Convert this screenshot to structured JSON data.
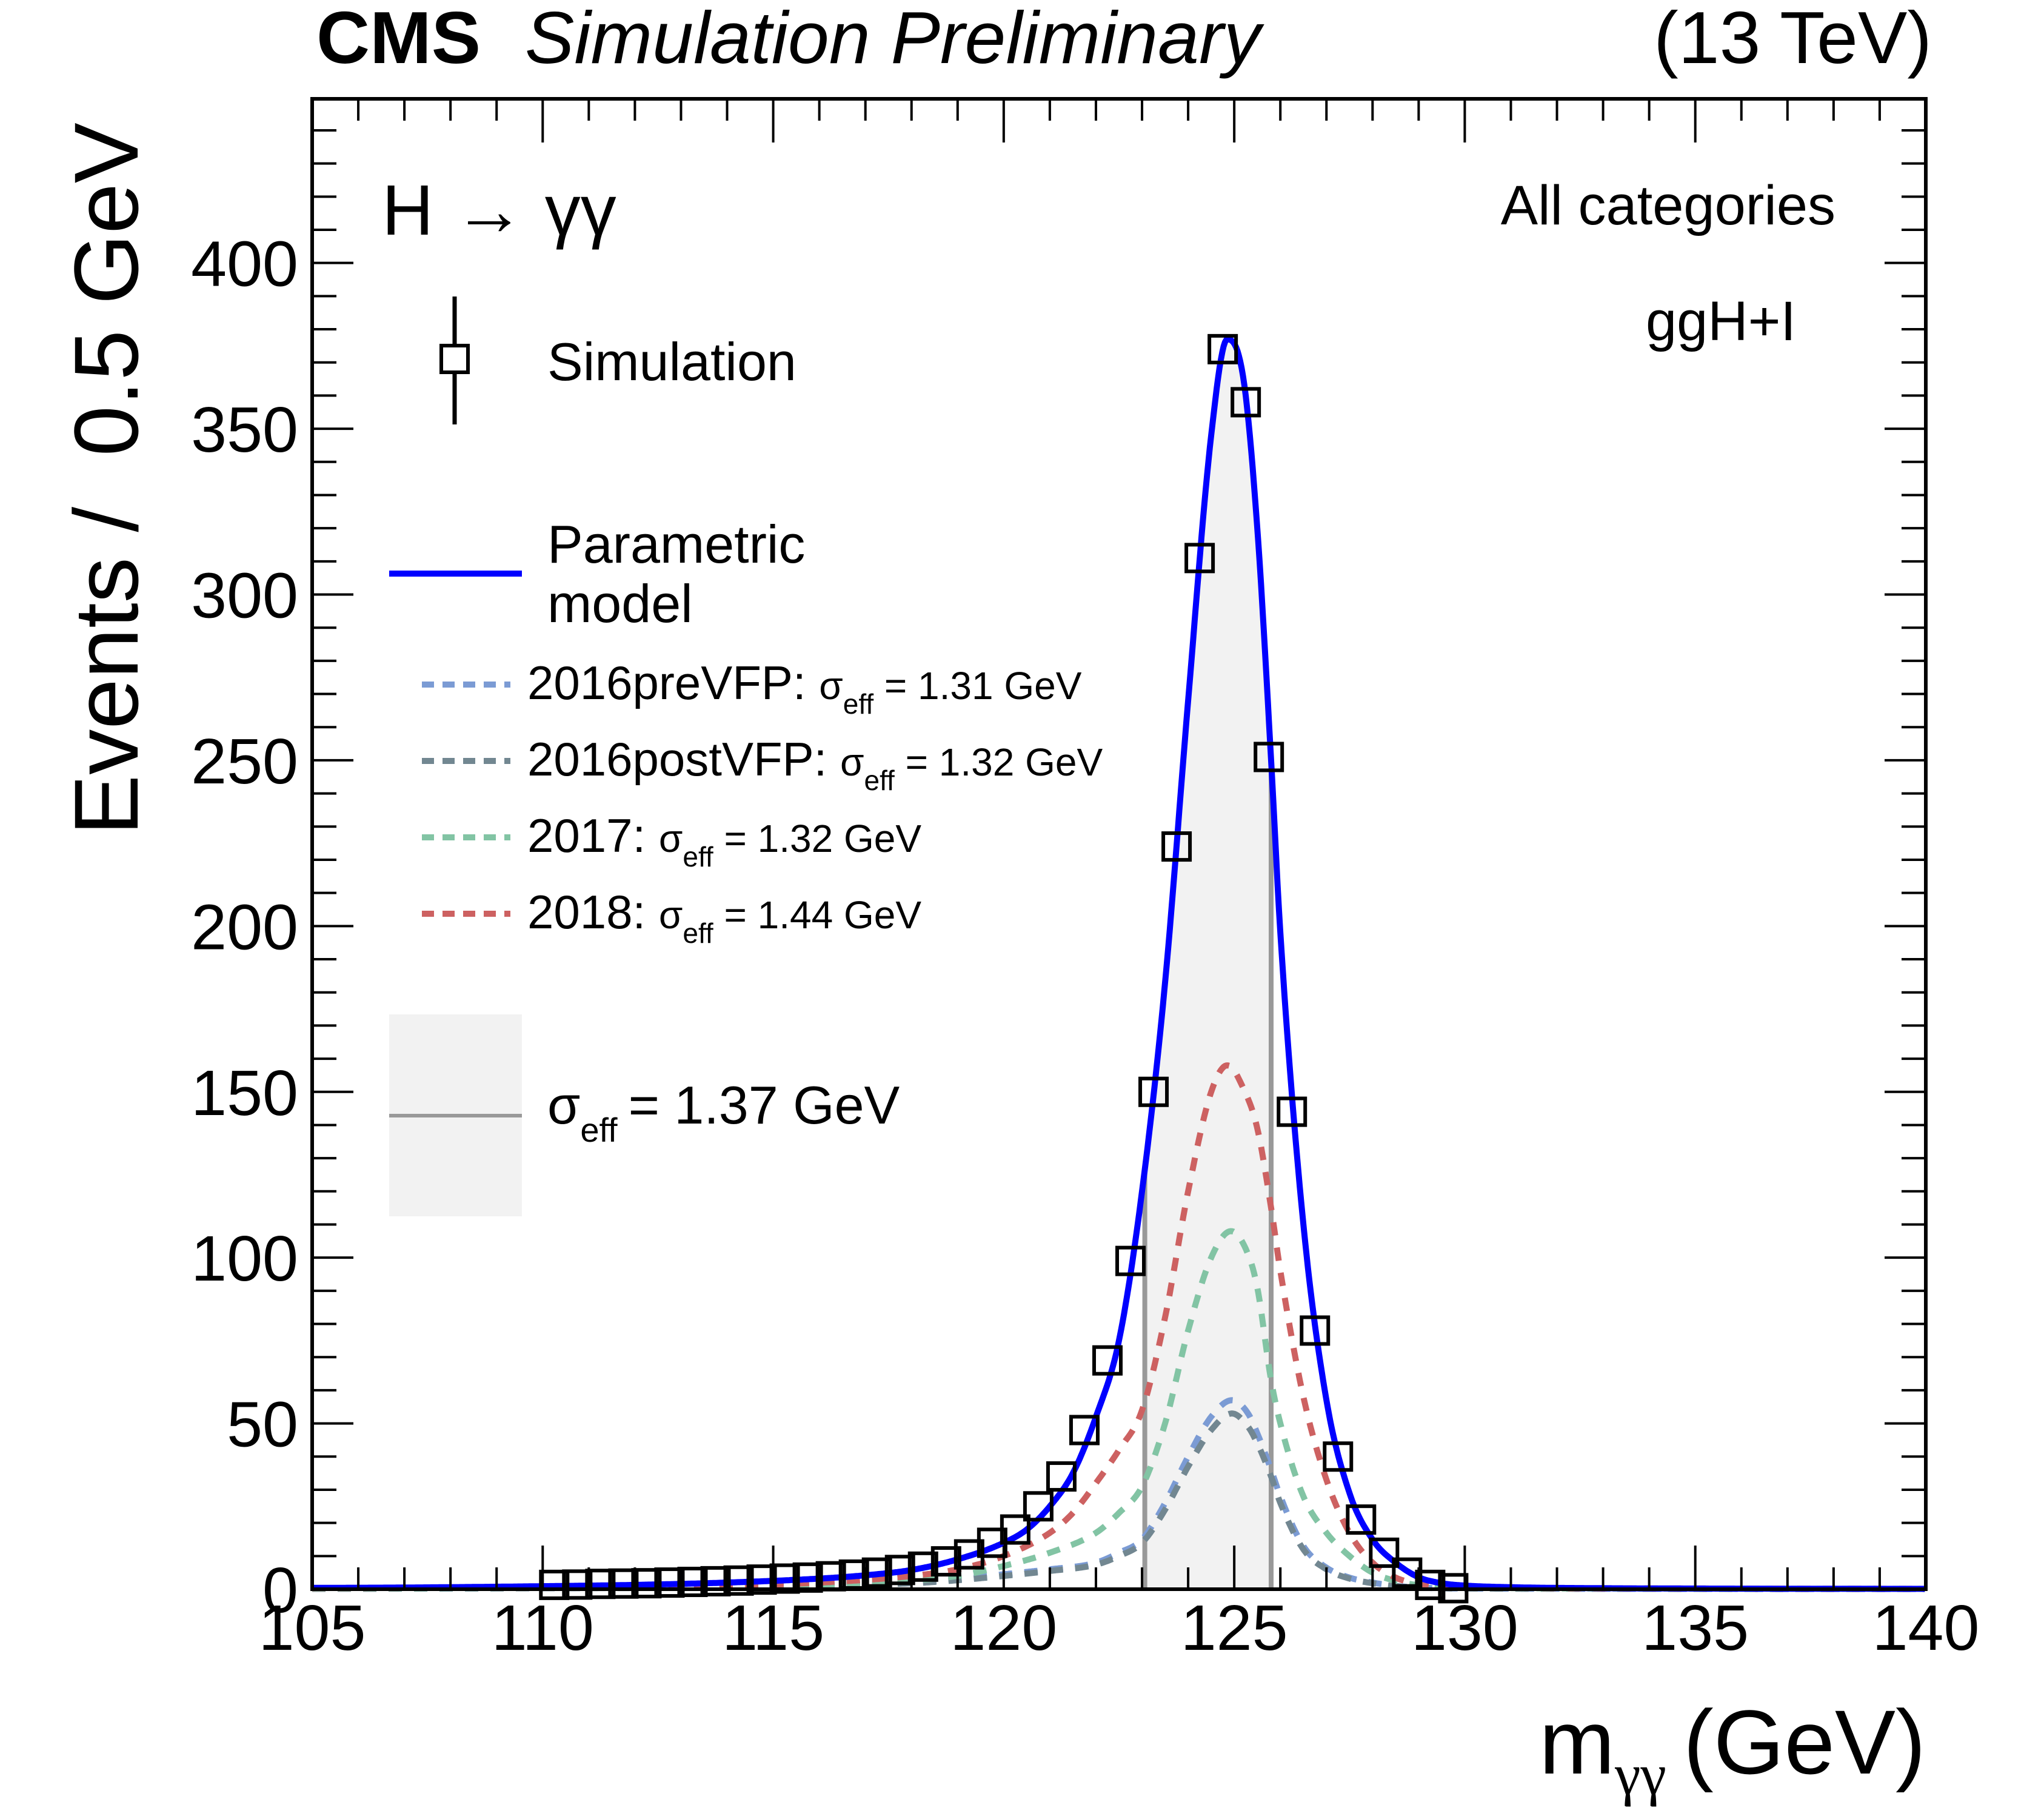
{
  "header": {
    "experiment": "CMS",
    "status": "Simulation Preliminary",
    "energy": "(13 TeV)"
  },
  "annotations": {
    "process": "H → γγ",
    "category": "All categories",
    "production": "ggH+I"
  },
  "legend": {
    "simulation": "Simulation",
    "model_line1": "Parametric",
    "model_line2": "model",
    "years": [
      {
        "name": "2016preVFP:",
        "sigma": "σ",
        "sub": "eff",
        "value": "= 1.31 GeV",
        "color": "#7b9bd4"
      },
      {
        "name": "2016postVFP:",
        "sigma": "σ",
        "sub": "eff",
        "value": "= 1.32 GeV",
        "color": "#728791"
      },
      {
        "name": "2017:",
        "sigma": "σ",
        "sub": "eff",
        "value": "= 1.32 GeV",
        "color": "#82c4a4"
      },
      {
        "name": "2018:",
        "sigma": "σ",
        "sub": "eff",
        "value": "= 1.44 GeV",
        "color": "#cd6161"
      }
    ],
    "sigma_eff": {
      "sigma": "σ",
      "sub": "eff",
      "value": "= 1.37 GeV"
    }
  },
  "chart_data": {
    "type": "line",
    "title": "CMS Simulation Preliminary (13 TeV)",
    "xlabel_main": "m",
    "xlabel_sub": "γγ",
    "xlabel_unit": "(GeV)",
    "ylabel": "Events /  0.5 GeV",
    "xlim": [
      105,
      140
    ],
    "ylim": [
      0,
      449.5
    ],
    "x_ticks": [
      105,
      110,
      115,
      120,
      125,
      130,
      135,
      140
    ],
    "y_ticks": [
      0,
      50,
      100,
      150,
      200,
      250,
      300,
      350,
      400
    ],
    "x_minor_step": 1,
    "y_minor_step": 10,
    "grid": false,
    "legend_position": "top-left",
    "colors": {
      "model": "#0000ff",
      "band_fill": "#f2f2f2",
      "band_edge": "#999999",
      "points": "#000000"
    },
    "sigma_eff_band": [
      123.06,
      125.8
    ],
    "simulation_points": {
      "name": "Simulation",
      "bin_width": 0.5,
      "x": [
        110.25,
        110.75,
        111.25,
        111.75,
        112.25,
        112.75,
        113.25,
        113.75,
        114.25,
        114.75,
        115.25,
        115.75,
        116.25,
        116.75,
        117.25,
        117.75,
        118.25,
        118.75,
        119.25,
        119.75,
        120.25,
        120.75,
        121.25,
        121.75,
        122.25,
        122.75,
        123.25,
        123.75,
        124.25,
        124.75,
        125.25,
        125.75,
        126.25,
        126.75,
        127.25,
        127.75,
        128.25,
        128.75,
        129.25,
        129.75
      ],
      "y": [
        1.3,
        1.4,
        1.6,
        1.7,
        1.8,
        2.0,
        2.2,
        2.4,
        2.6,
        2.9,
        3.2,
        3.5,
        3.9,
        4.4,
        5.0,
        5.8,
        6.8,
        8.4,
        10.5,
        14,
        18,
        25,
        34,
        48,
        69,
        99,
        150,
        224,
        311,
        374,
        358,
        251,
        144,
        78,
        40,
        21,
        11,
        5,
        1.3,
        0.3
      ]
    },
    "series": [
      {
        "name": "Parametric model",
        "style": "solid",
        "color": "#0000ff",
        "x": [
          105,
          107,
          110,
          112,
          114,
          116,
          117,
          118,
          119,
          120,
          120.5,
          121,
          121.5,
          122,
          122.5,
          123,
          123.5,
          124,
          124.5,
          124.85,
          125.2,
          125.5,
          125.8,
          126,
          126.5,
          127,
          127.5,
          128,
          128.5,
          129,
          129.5,
          130,
          131,
          133,
          135,
          140
        ],
        "y": [
          0.4,
          0.5,
          0.9,
          1.3,
          2.0,
          3.2,
          4.2,
          5.8,
          9,
          14,
          18,
          25,
          35,
          52,
          75,
          120,
          183,
          268,
          348,
          377,
          365,
          320,
          250,
          198,
          110,
          57,
          29,
          15,
          8,
          3.6,
          1.8,
          1.1,
          0.6,
          0.3,
          0.2,
          0.1
        ]
      },
      {
        "name": "2016preVFP",
        "style": "dashed",
        "color": "#7b9bd4",
        "x": [
          105,
          110,
          114,
          116,
          118,
          119,
          120,
          121,
          122,
          122.5,
          123,
          123.5,
          124,
          124.5,
          124.95,
          125.3,
          125.5,
          125.8,
          126,
          126.5,
          127,
          127.5,
          128,
          128.5,
          129,
          130,
          140
        ],
        "y": [
          0.1,
          0.3,
          0.6,
          1,
          2,
          3,
          4.5,
          6,
          8,
          11,
          15,
          26,
          40,
          52,
          57,
          53,
          47,
          36,
          28,
          13,
          6.5,
          3.5,
          2,
          1,
          0.5,
          0.2,
          0.05
        ]
      },
      {
        "name": "2016postVFP",
        "style": "dashed",
        "color": "#728791",
        "x": [
          105,
          110,
          114,
          116,
          118,
          119,
          120,
          121,
          122,
          122.5,
          123,
          123.5,
          124,
          124.5,
          124.95,
          125.3,
          125.5,
          125.8,
          126,
          126.5,
          127,
          127.5,
          128,
          128.5,
          129,
          130,
          140
        ],
        "y": [
          0.1,
          0.3,
          0.5,
          0.9,
          1.8,
          2.7,
          4,
          5.5,
          7.4,
          10,
          14,
          24,
          37,
          48,
          53,
          49,
          44,
          34,
          26,
          12,
          6,
          3.2,
          1.8,
          0.9,
          0.5,
          0.2,
          0.05
        ]
      },
      {
        "name": "2017",
        "style": "dashed",
        "color": "#82c4a4",
        "x": [
          105,
          110,
          114,
          116,
          118,
          119,
          120,
          121,
          122,
          122.5,
          123,
          123.5,
          124,
          124.5,
          124.93,
          125.3,
          125.5,
          125.8,
          126,
          126.5,
          127,
          127.5,
          128,
          128.5,
          129,
          130,
          135,
          140
        ],
        "y": [
          0.2,
          0.4,
          0.8,
          1.3,
          2.6,
          4,
          7,
          11,
          17,
          23,
          31,
          50,
          78,
          100,
          108,
          101,
          91,
          63,
          50,
          28,
          17,
          10,
          5,
          2.5,
          1.2,
          0.5,
          0.15,
          0.1
        ]
      },
      {
        "name": "2018",
        "style": "dashed",
        "color": "#cd6161",
        "x": [
          105,
          110,
          114,
          116,
          118,
          119,
          120,
          121,
          121.5,
          122,
          122.5,
          123,
          123.5,
          124,
          124.5,
          124.85,
          125.2,
          125.5,
          125.8,
          126,
          126.5,
          127,
          127.5,
          128,
          128.5,
          129,
          130,
          135,
          140
        ],
        "y": [
          0.3,
          0.5,
          1,
          2,
          4,
          6,
          10,
          17,
          23,
          32,
          42,
          54,
          82,
          120,
          150,
          158,
          151,
          139,
          115,
          96,
          58,
          33,
          17,
          8,
          3.5,
          1.6,
          0.6,
          0.2,
          0.1
        ]
      }
    ]
  }
}
